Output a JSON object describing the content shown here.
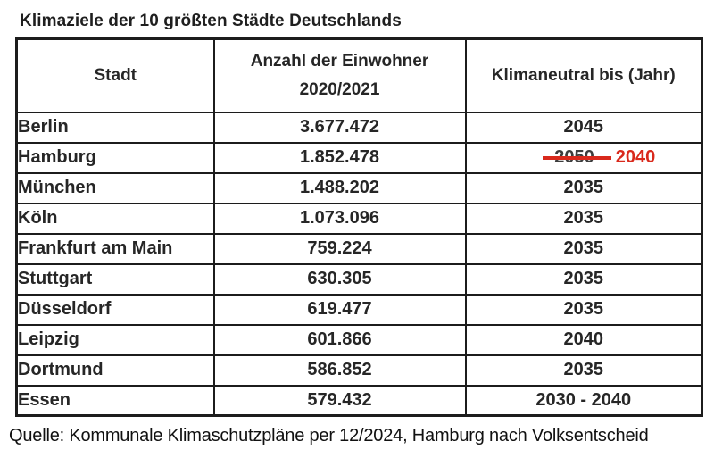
{
  "page": {
    "title": "Klimaziele der 10 größten Städte Deutschlands",
    "source_note": "Quelle: Kommunale Klimaschutzpläne per 12/2024, Hamburg nach Volksentscheid"
  },
  "table": {
    "headers": {
      "city": "Stadt",
      "population_line1": "Anzahl der Einwohner",
      "population_line2": "2020/2021",
      "target": "Klimaneutral bis (Jahr)"
    },
    "rows": [
      {
        "city": "Berlin",
        "population": "3.677.472",
        "target": "2045"
      },
      {
        "city": "Hamburg",
        "population": "1.852.478",
        "target_struck": "2050",
        "target_revised": "2040"
      },
      {
        "city": "München",
        "population": "1.488.202",
        "target": "2035"
      },
      {
        "city": "Köln",
        "population": "1.073.096",
        "target": "2035"
      },
      {
        "city": "Frankfurt am Main",
        "population": "759.224",
        "target": "2035"
      },
      {
        "city": "Stuttgart",
        "population": "630.305",
        "target": "2035"
      },
      {
        "city": "Düsseldorf",
        "population": "619.477",
        "target": "2035"
      },
      {
        "city": "Leipzig",
        "population": "601.866",
        "target": "2040"
      },
      {
        "city": "Dortmund",
        "population": "586.852",
        "target": "2035"
      },
      {
        "city": "Essen",
        "population": "579.432",
        "target": "2030 - 2040"
      }
    ]
  },
  "colors": {
    "accent_red": "#d9291c",
    "text": "#262626",
    "border": "#1c1c1c"
  }
}
